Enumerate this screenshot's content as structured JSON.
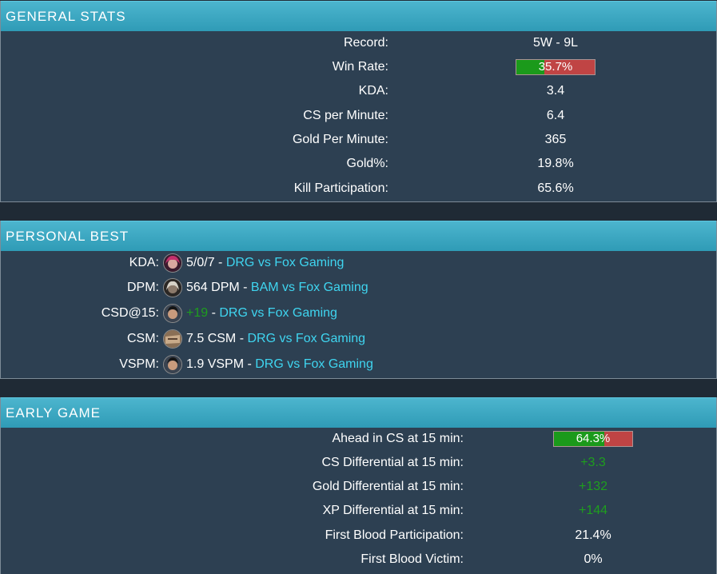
{
  "general_stats": {
    "title": "GENERAL STATS",
    "rows": [
      {
        "label": "Record:",
        "value": "5W - 9L"
      },
      {
        "label": "Win Rate:",
        "value": "35.7%",
        "fraction": 0.357
      },
      {
        "label": "KDA:",
        "value": "3.4"
      },
      {
        "label": "CS per Minute:",
        "value": "6.4"
      },
      {
        "label": "Gold Per Minute:",
        "value": "365"
      },
      {
        "label": "Gold%:",
        "value": "19.8%"
      },
      {
        "label": "Kill Participation:",
        "value": "65.6%"
      }
    ]
  },
  "personal_best": {
    "title": "PERSONAL BEST",
    "rows": [
      {
        "label": "KDA:",
        "champion_icon": "pink-hair-champion-icon",
        "stat": "5/0/7",
        "stat_positive": false,
        "sep": " - ",
        "match": "DRG vs Fox Gaming"
      },
      {
        "label": "DPM:",
        "champion_icon": "gray-hair-champion-icon",
        "stat": "564 DPM",
        "stat_positive": false,
        "sep": " - ",
        "match": "BAM vs Fox Gaming"
      },
      {
        "label": "CSD@15:",
        "champion_icon": "dark-hair-champion-icon",
        "stat": "+19",
        "stat_positive": true,
        "sep": " - ",
        "match": "DRG vs Fox Gaming"
      },
      {
        "label": "CSM:",
        "champion_icon": "wooden-mask-champion-icon",
        "stat": "7.5 CSM",
        "stat_positive": false,
        "sep": " - ",
        "match": "DRG vs Fox Gaming"
      },
      {
        "label": "VSPM:",
        "champion_icon": "dark-hair-champion-icon",
        "stat": "1.9 VSPM",
        "stat_positive": false,
        "sep": " - ",
        "match": "DRG vs Fox Gaming"
      }
    ]
  },
  "early_game": {
    "title": "EARLY GAME",
    "rows": [
      {
        "label": "Ahead in CS at 15 min:",
        "value": "64.3%",
        "fraction": 0.643
      },
      {
        "label": "CS Differential at 15 min:",
        "value": "+3.3",
        "positive": true
      },
      {
        "label": "Gold Differential at 15 min:",
        "value": "+132",
        "positive": true
      },
      {
        "label": "XP Differential at 15 min:",
        "value": "+144",
        "positive": true
      },
      {
        "label": "First Blood Participation:",
        "value": "21.4%"
      },
      {
        "label": "First Blood Victim:",
        "value": "0%"
      }
    ]
  },
  "colors": {
    "header": "#3aa8c3",
    "panel": "#2d4052",
    "positive": "#1e9e1e",
    "link": "#3fd5f0",
    "bar_good": "#1b9a1b",
    "bar_bad": "#c04444"
  }
}
